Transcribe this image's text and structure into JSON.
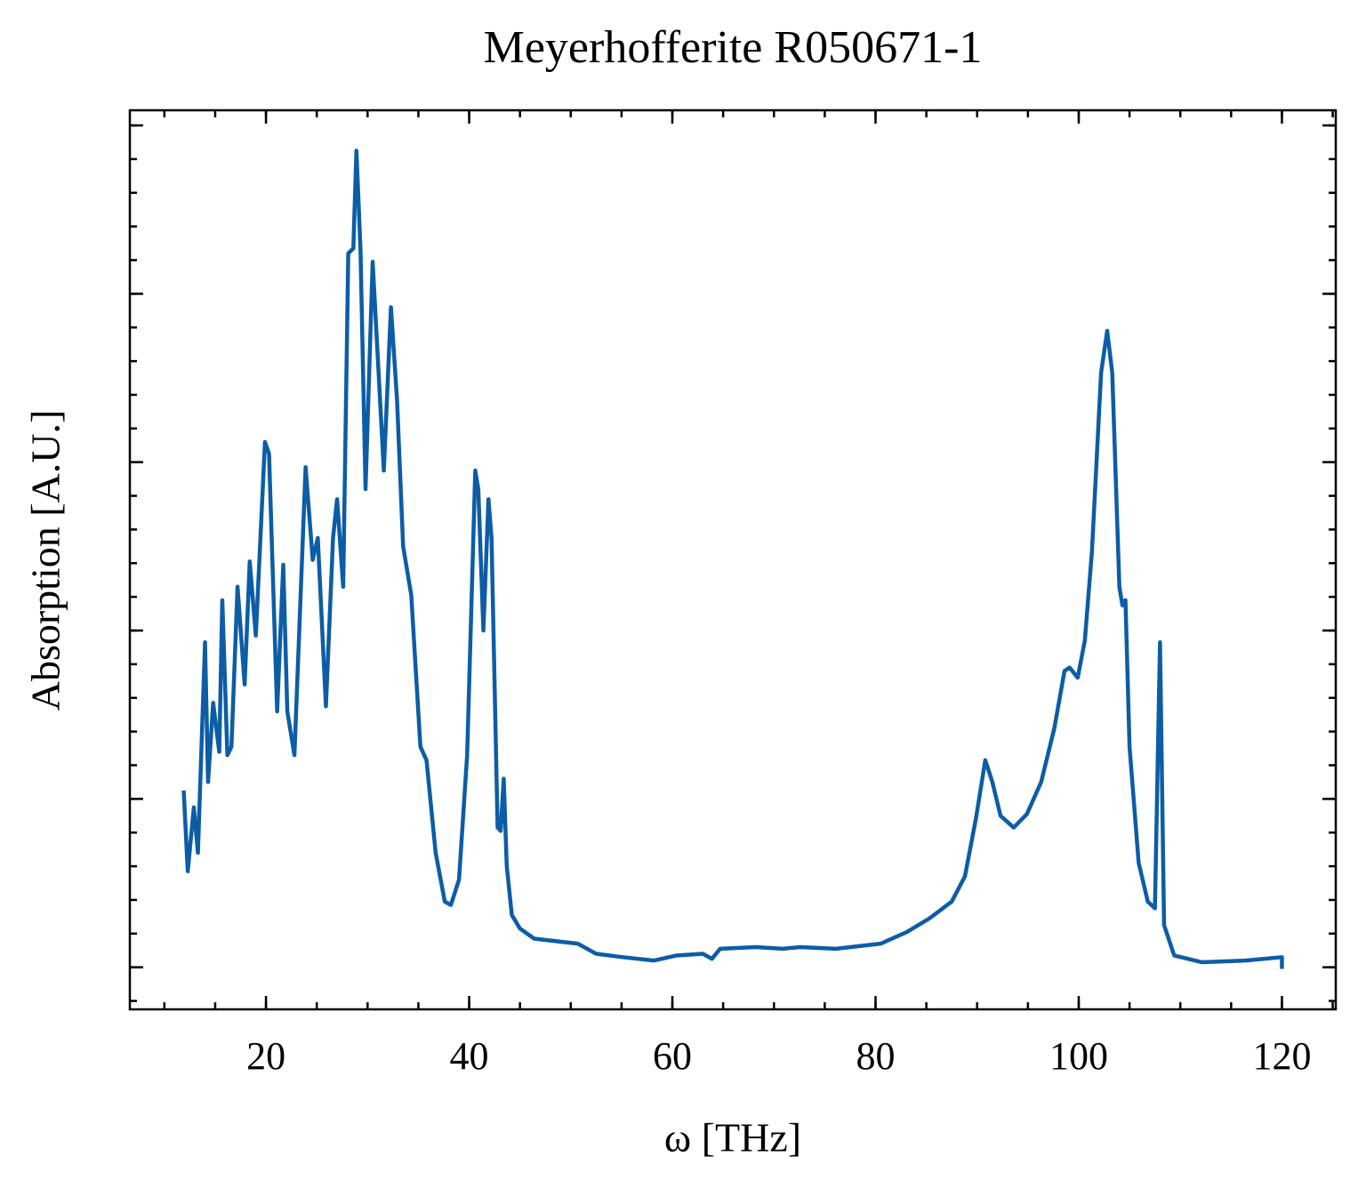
{
  "chart_data": {
    "type": "line",
    "title": "Meyerhofferite R050671-1",
    "xlabel": "ω [THz]",
    "ylabel": "Absorption [A.U.]",
    "color": "#0c5da5",
    "xlim": [
      6.6,
      125.3
    ],
    "xticks": [
      20,
      40,
      60,
      80,
      100,
      120
    ],
    "xminor": 5,
    "ylim": [
      -0.25,
      5.09
    ],
    "yticks": [
      0,
      1,
      2,
      3,
      4,
      5
    ],
    "yminor": 0.2,
    "ytick_labels": false,
    "x": [
      11.9,
      12.3,
      12.9,
      13.3,
      14.0,
      14.3,
      14.8,
      15.4,
      15.7,
      16.2,
      16.6,
      17.2,
      17.9,
      18.4,
      19.0,
      19.9,
      20.3,
      21.1,
      21.7,
      22.1,
      22.8,
      23.9,
      24.6,
      25.1,
      25.9,
      26.6,
      27.0,
      27.6,
      28.1,
      28.6,
      28.9,
      29.3,
      29.8,
      30.5,
      30.9,
      31.6,
      32.3,
      32.9,
      33.5,
      34.3,
      35.2,
      35.8,
      36.7,
      37.6,
      38.2,
      39.0,
      39.8,
      40.6,
      40.9,
      41.4,
      41.9,
      42.2,
      42.8,
      43.1,
      43.4,
      43.7,
      44.2,
      45.0,
      46.4,
      50.7,
      52.5,
      55.1,
      58.2,
      60.4,
      63.0,
      63.9,
      64.7,
      68.2,
      70.9,
      72.6,
      76.1,
      80.5,
      83.1,
      85.3,
      87.5,
      88.8,
      89.9,
      90.8,
      91.5,
      92.3,
      93.6,
      94.9,
      96.3,
      97.6,
      98.6,
      99.1,
      99.9,
      100.6,
      101.3,
      102.2,
      102.8,
      103.3,
      104.0,
      104.3,
      104.6,
      105.0,
      105.9,
      106.8,
      107.5,
      108.0,
      108.4,
      109.4,
      112.1,
      116.4,
      120.0,
      120.0
    ],
    "values": [
      1.05,
      0.57,
      0.95,
      0.68,
      1.93,
      1.1,
      1.57,
      1.28,
      2.18,
      1.26,
      1.31,
      2.26,
      1.68,
      2.41,
      1.97,
      3.12,
      3.05,
      1.52,
      2.39,
      1.52,
      1.26,
      2.97,
      2.42,
      2.55,
      1.55,
      2.55,
      2.78,
      2.26,
      4.24,
      4.27,
      4.85,
      4.27,
      2.84,
      4.19,
      3.74,
      2.95,
      3.92,
      3.37,
      2.5,
      2.21,
      1.31,
      1.23,
      0.68,
      0.39,
      0.37,
      0.52,
      1.26,
      2.95,
      2.84,
      2.0,
      2.78,
      2.55,
      0.83,
      0.81,
      1.12,
      0.6,
      0.31,
      0.23,
      0.17,
      0.14,
      0.08,
      0.06,
      0.04,
      0.07,
      0.08,
      0.05,
      0.11,
      0.12,
      0.11,
      0.12,
      0.11,
      0.14,
      0.21,
      0.29,
      0.39,
      0.54,
      0.89,
      1.23,
      1.1,
      0.9,
      0.83,
      0.91,
      1.1,
      1.42,
      1.76,
      1.78,
      1.72,
      1.94,
      2.47,
      3.53,
      3.78,
      3.53,
      2.26,
      2.15,
      2.18,
      1.31,
      0.62,
      0.39,
      0.35,
      1.93,
      0.25,
      0.07,
      0.03,
      0.04,
      0.06,
      -0.01
    ]
  }
}
